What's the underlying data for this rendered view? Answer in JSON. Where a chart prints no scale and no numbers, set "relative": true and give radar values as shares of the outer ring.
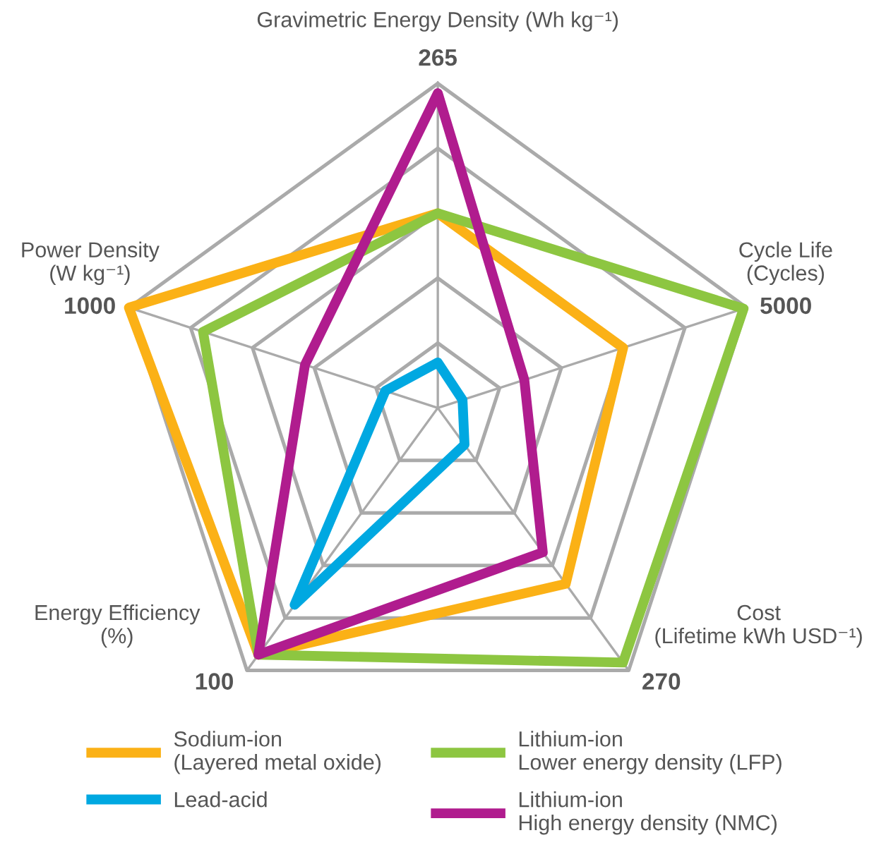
{
  "chart_data": {
    "type": "radar",
    "relative": true,
    "grid": true,
    "legend": "bottom",
    "line_style": "solid",
    "marker": "none",
    "categories": [
      "Gravimetric Energy Density (Wh kg⁻¹)",
      "Cycle Life\n(Cycles)",
      "Cost\n(Lifetime kWh USD⁻¹)",
      "Energy Efficiency\n(%)",
      "Power Density\n(W kg⁻¹)"
    ],
    "annotations": [
      "265",
      "5000",
      "270",
      "100",
      "1000"
    ],
    "series": [
      {
        "name": "Sodium-ion\n(Layered metal oxide)",
        "color": "#fbb116",
        "values": [
          0.6,
          0.6,
          0.67,
          0.94,
          1.0
        ]
      },
      {
        "name": "Lithium-ion\nLower energy density (LFP)",
        "color": "#8dc641",
        "values": [
          0.6,
          0.99,
          0.97,
          0.94,
          0.76
        ]
      },
      {
        "name": "Lead-acid",
        "color": "#00a8e1",
        "values": [
          0.14,
          0.08,
          0.14,
          0.75,
          0.17
        ]
      },
      {
        "name": "Lithium-ion\nHigh energy density (NMC)",
        "color": "#b01c8e",
        "values": [
          0.97,
          0.28,
          0.55,
          0.94,
          0.43
        ]
      }
    ]
  }
}
